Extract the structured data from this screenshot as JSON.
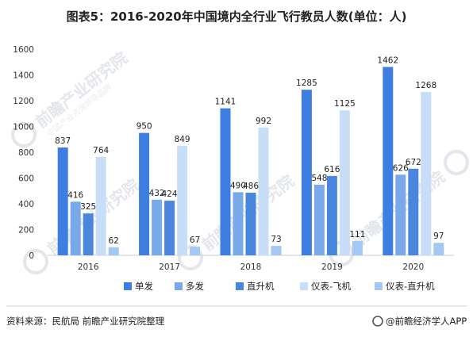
{
  "chart_data": {
    "type": "bar",
    "title": "图表5：2016-2020年中国境内全行业飞行教员人数(单位：人)",
    "categories": [
      "2016",
      "2017",
      "2018",
      "2019",
      "2020"
    ],
    "ylim": [
      0,
      1600
    ],
    "yticks": [
      0,
      200,
      400,
      600,
      800,
      1000,
      1200,
      1400,
      1600
    ],
    "grid": false,
    "legend_position": "bottom",
    "series": [
      {
        "name": "单发",
        "color": "#3d7ee0",
        "values": [
          837,
          950,
          1141,
          1285,
          1462
        ]
      },
      {
        "name": "多发",
        "color": "#7aa9ea",
        "values": [
          416,
          432,
          490,
          548,
          626
        ]
      },
      {
        "name": "直升机",
        "color": "#4a86de",
        "values": [
          325,
          424,
          486,
          616,
          672
        ]
      },
      {
        "name": "仪表-飞机",
        "color": "#c8def8",
        "values": [
          764,
          849,
          992,
          1125,
          1268
        ]
      },
      {
        "name": "仪表-直升机",
        "color": "#a3c8f3",
        "values": [
          62,
          67,
          73,
          111,
          97
        ]
      }
    ]
  },
  "source_text": "资料来源：民航局 前瞻产业研究院整理",
  "footer_brand": "@前瞻经济学人APP",
  "watermark": {
    "main": "前瞻产业研究院",
    "sub": "中国产业咨询领导品牌"
  }
}
